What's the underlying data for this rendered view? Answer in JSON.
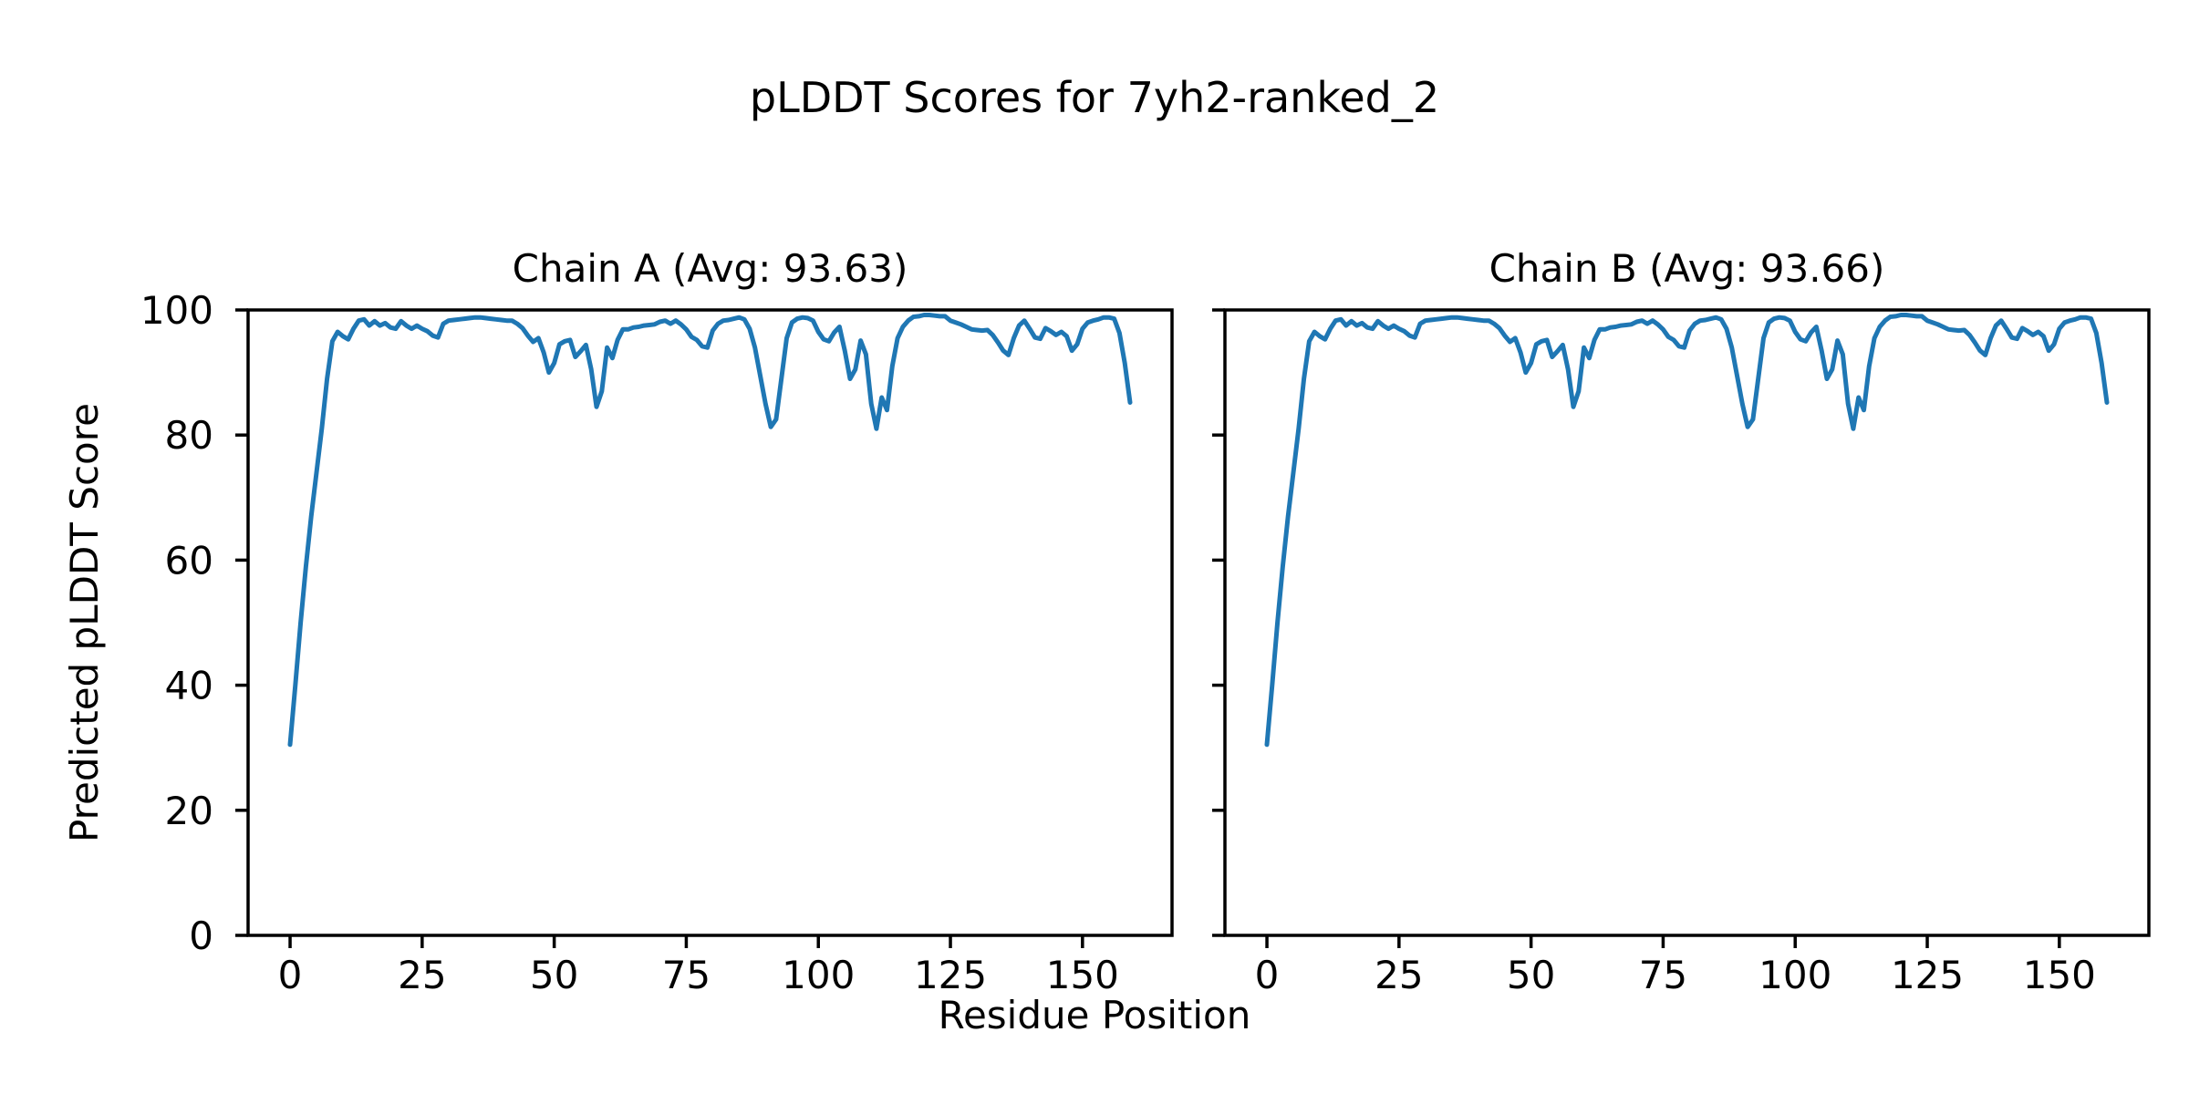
{
  "figure": {
    "suptitle": "pLDDT Scores for 7yh2-ranked_2",
    "xlabel": "Residue Position",
    "ylabel": "Predicted pLDDT Score",
    "background_color": "#ffffff",
    "text_color": "#000000"
  },
  "chart_data": {
    "type": "line",
    "title": "pLDDT Scores for 7yh2-ranked_2",
    "xlabel": "Residue Position",
    "ylabel": "Predicted pLDDT Score",
    "line_color": "#1f77b4",
    "axis_color": "#000000",
    "grid": false,
    "legend": false,
    "xlim": [
      -7.95,
      166.95
    ],
    "ylim": [
      0,
      100
    ],
    "xticks": [
      0,
      25,
      50,
      75,
      100,
      125,
      150
    ],
    "yticks": [
      0,
      20,
      40,
      60,
      80,
      100
    ],
    "x_start": 0,
    "x_step": 1,
    "subplots": [
      {
        "title": "Chain A (Avg: 93.63)",
        "chain": "A",
        "avg": 93.63,
        "show_ytick_labels": true
      },
      {
        "title": "Chain B (Avg: 93.66)",
        "chain": "B",
        "avg": 93.66,
        "show_ytick_labels": false
      }
    ],
    "values": [
      30.5,
      40,
      50,
      59,
      67,
      74,
      81,
      89,
      95,
      96.5,
      95.8,
      95.3,
      97,
      98.3,
      98.5,
      97.5,
      98.2,
      97.5,
      97.9,
      97.2,
      97,
      98.2,
      97.5,
      97,
      97.5,
      97,
      96.6,
      95.9,
      95.6,
      97.8,
      98.3,
      98.4,
      98.5,
      98.6,
      98.7,
      98.8,
      98.8,
      98.7,
      98.6,
      98.5,
      98.4,
      98.3,
      98.3,
      97.8,
      97.1,
      95.9,
      94.9,
      95.5,
      93.2,
      90,
      91.5,
      94.5,
      95,
      95.2,
      92.5,
      93.4,
      94.4,
      90.5,
      84.5,
      87,
      94,
      92.3,
      95.2,
      96.9,
      96.9,
      97.2,
      97.3,
      97.5,
      97.6,
      97.7,
      98.1,
      98.3,
      97.8,
      98.3,
      97.7,
      96.9,
      95.7,
      95.2,
      94.2,
      94,
      96.7,
      97.8,
      98.3,
      98.4,
      98.6,
      98.8,
      98.5,
      97,
      94,
      89.5,
      85,
      81.3,
      82.5,
      89,
      95.5,
      98,
      98.6,
      98.8,
      98.7,
      98.3,
      96.5,
      95.3,
      95,
      96.4,
      97.3,
      93.5,
      89,
      90.5,
      95.1,
      92.9,
      85,
      81,
      86,
      84,
      91,
      95.5,
      97.3,
      98.3,
      98.9,
      99,
      99.2,
      99.2,
      99.1,
      99,
      99,
      98.3,
      98,
      97.7,
      97.3,
      96.9,
      96.8,
      96.7,
      96.8,
      96,
      94.8,
      93.5,
      92.8,
      95.5,
      97.5,
      98.3,
      97,
      95.6,
      95.4,
      97.1,
      96.6,
      96,
      96.5,
      95.8,
      93.5,
      94.5,
      97,
      98,
      98.3,
      98.5,
      98.8,
      98.8,
      98.6,
      96.3,
      91.5,
      85.2
    ]
  }
}
